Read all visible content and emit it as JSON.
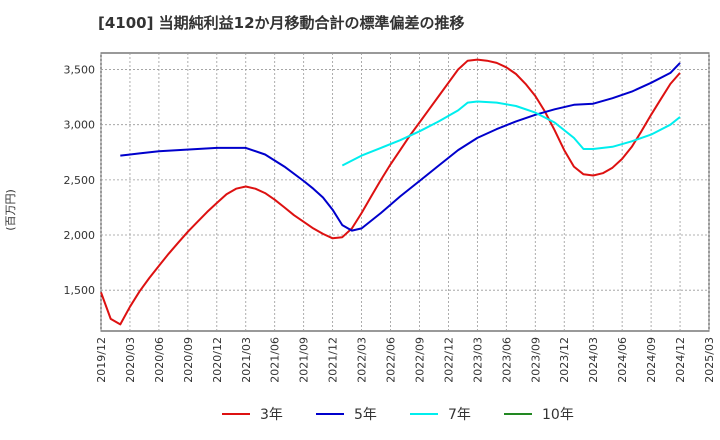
{
  "chart_data": {
    "type": "line",
    "title": "[4100]  当期純利益12か月移動合計の標準偏差の推移",
    "ylabel": "(百万円)",
    "xlabel": "",
    "x_ticks": [
      "2019/12",
      "2020/03",
      "2020/06",
      "2020/09",
      "2020/12",
      "2021/03",
      "2021/06",
      "2021/09",
      "2021/12",
      "2022/03",
      "2022/06",
      "2022/09",
      "2022/12",
      "2023/03",
      "2023/06",
      "2023/09",
      "2023/12",
      "2024/03",
      "2024/06",
      "2024/09",
      "2024/12",
      "2025/03"
    ],
    "y_ticks": [
      1500,
      2000,
      2500,
      3000,
      3500
    ],
    "ylim": [
      1130,
      3650
    ],
    "grid": true,
    "legend_position": "bottom",
    "series": [
      {
        "name": "3年",
        "color": "#dd1111",
        "points": [
          [
            "2019/12",
            1480
          ],
          [
            "2020/01",
            1240
          ],
          [
            "2020/02",
            1190
          ],
          [
            "2020/03",
            1350
          ],
          [
            "2020/04",
            1490
          ],
          [
            "2020/05",
            1610
          ],
          [
            "2020/06",
            1720
          ],
          [
            "2020/07",
            1830
          ],
          [
            "2020/08",
            1930
          ],
          [
            "2020/09",
            2030
          ],
          [
            "2020/10",
            2120
          ],
          [
            "2020/11",
            2210
          ],
          [
            "2020/12",
            2290
          ],
          [
            "2021/01",
            2370
          ],
          [
            "2021/02",
            2420
          ],
          [
            "2021/03",
            2440
          ],
          [
            "2021/04",
            2420
          ],
          [
            "2021/05",
            2380
          ],
          [
            "2021/06",
            2320
          ],
          [
            "2021/07",
            2250
          ],
          [
            "2021/08",
            2180
          ],
          [
            "2021/09",
            2120
          ],
          [
            "2021/10",
            2060
          ],
          [
            "2021/11",
            2010
          ],
          [
            "2021/12",
            1970
          ],
          [
            "2022/01",
            1980
          ],
          [
            "2022/02",
            2060
          ],
          [
            "2022/03",
            2200
          ],
          [
            "2022/04",
            2350
          ],
          [
            "2022/05",
            2500
          ],
          [
            "2022/06",
            2640
          ],
          [
            "2022/07",
            2770
          ],
          [
            "2022/08",
            2900
          ],
          [
            "2022/09",
            3020
          ],
          [
            "2022/10",
            3140
          ],
          [
            "2022/11",
            3260
          ],
          [
            "2022/12",
            3380
          ],
          [
            "2023/01",
            3500
          ],
          [
            "2023/02",
            3580
          ],
          [
            "2023/03",
            3590
          ],
          [
            "2023/04",
            3580
          ],
          [
            "2023/05",
            3560
          ],
          [
            "2023/06",
            3520
          ],
          [
            "2023/07",
            3460
          ],
          [
            "2023/08",
            3370
          ],
          [
            "2023/09",
            3260
          ],
          [
            "2023/10",
            3120
          ],
          [
            "2023/11",
            2950
          ],
          [
            "2023/12",
            2770
          ],
          [
            "2024/01",
            2620
          ],
          [
            "2024/02",
            2550
          ],
          [
            "2024/03",
            2540
          ],
          [
            "2024/04",
            2560
          ],
          [
            "2024/05",
            2610
          ],
          [
            "2024/06",
            2690
          ],
          [
            "2024/07",
            2800
          ],
          [
            "2024/08",
            2940
          ],
          [
            "2024/09",
            3090
          ],
          [
            "2024/10",
            3230
          ],
          [
            "2024/11",
            3370
          ],
          [
            "2024/12",
            3470
          ]
        ]
      },
      {
        "name": "5年",
        "color": "#0000cc",
        "points": [
          [
            "2020/02",
            2720
          ],
          [
            "2020/04",
            2740
          ],
          [
            "2020/06",
            2760
          ],
          [
            "2020/08",
            2770
          ],
          [
            "2020/10",
            2780
          ],
          [
            "2020/12",
            2790
          ],
          [
            "2021/01",
            2790
          ],
          [
            "2021/02",
            2790
          ],
          [
            "2021/03",
            2790
          ],
          [
            "2021/05",
            2730
          ],
          [
            "2021/07",
            2620
          ],
          [
            "2021/09",
            2490
          ],
          [
            "2021/10",
            2420
          ],
          [
            "2021/11",
            2340
          ],
          [
            "2021/12",
            2230
          ],
          [
            "2022/01",
            2090
          ],
          [
            "2022/02",
            2040
          ],
          [
            "2022/03",
            2060
          ],
          [
            "2022/05",
            2200
          ],
          [
            "2022/07",
            2350
          ],
          [
            "2022/09",
            2490
          ],
          [
            "2022/11",
            2630
          ],
          [
            "2023/01",
            2770
          ],
          [
            "2023/03",
            2880
          ],
          [
            "2023/05",
            2960
          ],
          [
            "2023/07",
            3030
          ],
          [
            "2023/09",
            3090
          ],
          [
            "2023/11",
            3140
          ],
          [
            "2024/01",
            3180
          ],
          [
            "2024/03",
            3190
          ],
          [
            "2024/05",
            3240
          ],
          [
            "2024/07",
            3300
          ],
          [
            "2024/09",
            3380
          ],
          [
            "2024/11",
            3470
          ],
          [
            "2024/12",
            3560
          ]
        ]
      },
      {
        "name": "7年",
        "color": "#00eeee",
        "points": [
          [
            "2022/01",
            2630
          ],
          [
            "2022/03",
            2720
          ],
          [
            "2022/05",
            2790
          ],
          [
            "2022/07",
            2860
          ],
          [
            "2022/09",
            2940
          ],
          [
            "2022/11",
            3030
          ],
          [
            "2023/01",
            3130
          ],
          [
            "2023/02",
            3200
          ],
          [
            "2023/03",
            3210
          ],
          [
            "2023/05",
            3200
          ],
          [
            "2023/07",
            3170
          ],
          [
            "2023/09",
            3110
          ],
          [
            "2023/11",
            3020
          ],
          [
            "2024/01",
            2880
          ],
          [
            "2024/02",
            2780
          ],
          [
            "2024/03",
            2780
          ],
          [
            "2024/05",
            2800
          ],
          [
            "2024/07",
            2850
          ],
          [
            "2024/09",
            2910
          ],
          [
            "2024/11",
            3000
          ],
          [
            "2024/12",
            3070
          ]
        ]
      },
      {
        "name": "10年",
        "color": "#228822",
        "points": []
      }
    ]
  }
}
